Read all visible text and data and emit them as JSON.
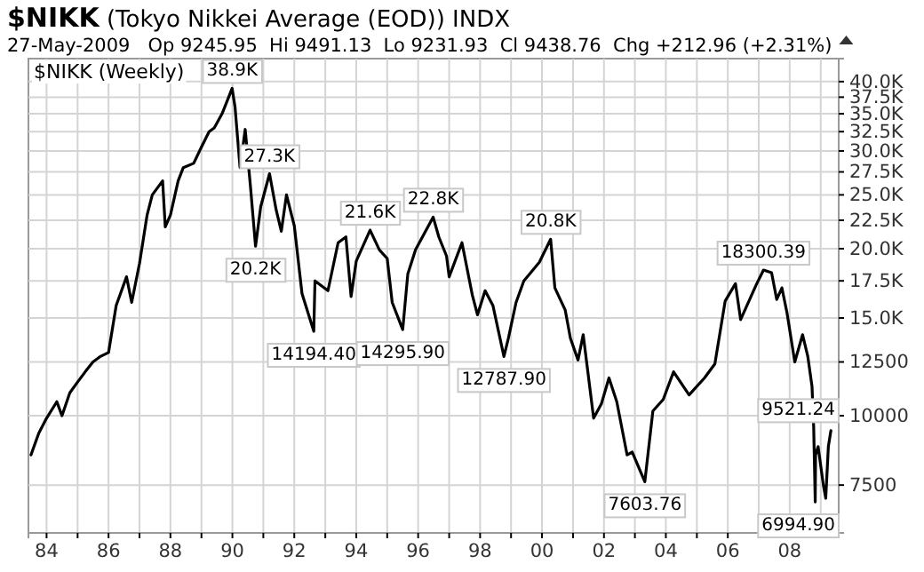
{
  "chart_data": {
    "type": "line",
    "title": "$NIKK (Tokyo Nikkei Average (EOD)) INDX",
    "subtitle": "27-May-2009   Op 9245.95  Hi 9491.13  Lo 9231.93  Cl 9438.76  Chg +212.96 (+2.31%)",
    "log": "y",
    "grid": true,
    "xlim": [
      "1983-06",
      "2009-08"
    ],
    "xticks": [
      {
        "value": "1984",
        "label": "84"
      },
      {
        "value": "1985",
        "label": null
      },
      {
        "value": "1986",
        "label": "86"
      },
      {
        "value": "1987",
        "label": null
      },
      {
        "value": "1988",
        "label": "88"
      },
      {
        "value": "1989",
        "label": null
      },
      {
        "value": "1990",
        "label": "90"
      },
      {
        "value": "1991",
        "label": null
      },
      {
        "value": "1992",
        "label": "92"
      },
      {
        "value": "1993",
        "label": null
      },
      {
        "value": "1994",
        "label": "94"
      },
      {
        "value": "1995",
        "label": null
      },
      {
        "value": "1996",
        "label": "96"
      },
      {
        "value": "1997",
        "label": null
      },
      {
        "value": "1998",
        "label": "98"
      },
      {
        "value": "1999",
        "label": null
      },
      {
        "value": "2000",
        "label": "00"
      },
      {
        "value": "2001",
        "label": null
      },
      {
        "value": "2002",
        "label": "02"
      },
      {
        "value": "2003",
        "label": null
      },
      {
        "value": "2004",
        "label": "04"
      },
      {
        "value": "2005",
        "label": null
      },
      {
        "value": "2006",
        "label": "06"
      },
      {
        "value": "2007",
        "label": null
      },
      {
        "value": "2008",
        "label": "08"
      },
      {
        "value": "2009",
        "label": null
      }
    ],
    "ylim": [
      6150,
      44000
    ],
    "yticks": [
      7500,
      10000,
      12500,
      {
        "value": 15000,
        "label": "15.0K"
      },
      {
        "value": 17500,
        "label": "17.5K"
      },
      {
        "value": 20000,
        "label": "20.0K"
      },
      {
        "value": 22500,
        "label": "22.5K"
      },
      {
        "value": 25000,
        "label": "25.0K"
      },
      {
        "value": 27500,
        "label": "27.5K"
      },
      {
        "value": 30000,
        "label": "30.0K"
      },
      {
        "value": 32500,
        "label": "32.5K"
      },
      {
        "value": 35000,
        "label": "35.0K"
      },
      {
        "value": 37500,
        "label": "37.5K"
      },
      {
        "value": 40000,
        "label": "40.0K"
      }
    ],
    "series": [
      {
        "color": "#000000",
        "x": [
          "1983-07",
          "1983-10",
          "1984-01",
          "1984-05",
          "1984-07",
          "1984-10",
          "1985-01",
          "1985-04",
          "1985-07",
          "1985-10",
          "1986-01",
          "1986-04",
          "1986-08",
          "1986-10",
          "1987-01",
          "1987-04",
          "1987-06",
          "1987-10",
          "1987-11",
          "1988-01",
          "1988-04",
          "1988-06",
          "1988-10",
          "1989-01",
          "1989-04",
          "1989-06",
          "1989-09",
          "1989-12-29",
          "1990-02",
          "1990-04",
          "1990-06",
          "1990-08",
          "1990-10-01",
          "1990-12",
          "1991-03-15",
          "1991-06",
          "1991-08",
          "1991-10",
          "1992-01",
          "1992-04",
          "1992-08-18",
          "1992-09",
          "1993-02",
          "1993-06",
          "1993-09",
          "1993-11",
          "1994-01",
          "1994-06-13",
          "1994-10",
          "1995-01",
          "1995-03",
          "1995-07-03",
          "1995-09",
          "1995-12",
          "1996-06-26",
          "1996-09",
          "1996-12",
          "1997-01",
          "1997-06",
          "1997-10",
          "1997-12",
          "1998-03",
          "1998-06",
          "1998-10-09",
          "1998-12",
          "1999-03",
          "1999-06",
          "1999-12",
          "2000-04-12",
          "2000-06",
          "2000-10",
          "2000-12",
          "2001-03",
          "2001-05",
          "2001-09",
          "2001-12",
          "2002-03",
          "2002-06",
          "2002-10",
          "2002-12",
          "2003-04-28",
          "2003-08",
          "2003-12",
          "2004-04",
          "2004-10",
          "2005-04",
          "2005-08",
          "2005-12",
          "2006-04",
          "2006-06",
          "2006-12",
          "2007-02-26",
          "2007-06",
          "2007-08",
          "2007-10",
          "2007-12",
          "2008-03",
          "2008-06",
          "2008-08",
          "2008-09-20",
          "2008-10-10",
          "2008-10-28",
          "2008-11",
          "2008-12",
          "2009-02",
          "2009-03",
          "2009-04",
          "2009-05"
        ],
        "values": [
          8500,
          9300,
          9900,
          10600,
          10000,
          11000,
          11500,
          12000,
          12500,
          12800,
          13000,
          15800,
          17800,
          16000,
          18800,
          23000,
          25000,
          26500,
          21900,
          23000,
          26500,
          28000,
          28500,
          30500,
          32500,
          33000,
          35000,
          38900,
          36000,
          28000,
          32800,
          26000,
          20200,
          23800,
          27300,
          23500,
          21500,
          25000,
          22000,
          16600,
          14194.4,
          17500,
          16800,
          20500,
          21000,
          16400,
          19000,
          21600,
          19900,
          19200,
          16000,
          14295.9,
          18000,
          19900,
          22800,
          21000,
          19400,
          17800,
          20500,
          16500,
          15200,
          16800,
          15800,
          12787.9,
          13800,
          16000,
          17500,
          18900,
          20800,
          17000,
          15500,
          13800,
          12600,
          14000,
          9900,
          10500,
          11700,
          10600,
          8500,
          8600,
          7603.76,
          10200,
          10700,
          12000,
          10900,
          11700,
          12400,
          16100,
          17300,
          14900,
          17200,
          18300.39,
          18100,
          16200,
          17000,
          15300,
          12500,
          14000,
          12800,
          11300,
          9521.24,
          6994.9,
          8500,
          8800,
          7500,
          7100,
          8800,
          9400
        ]
      }
    ],
    "annotations": [
      "$NIKK (Weekly)",
      {
        "text": "38.9K",
        "x": "1989-12-29",
        "y": 38900
      },
      {
        "text": "27.3K",
        "x": "1991-03-15",
        "y": 27300
      },
      {
        "text": "20.2K",
        "x": "1990-10-01",
        "y": 20200
      },
      {
        "text": "14194.40",
        "x": "1992-08-18",
        "y": 14194.4
      },
      {
        "text": "21.6K",
        "x": "1994-06-13",
        "y": 21600
      },
      {
        "text": "14295.90",
        "x": "1995-07-03",
        "y": 14295.9
      },
      {
        "text": "22.8K",
        "x": "1996-06-26",
        "y": 22800
      },
      {
        "text": "12787.90",
        "x": "1998-10-09",
        "y": 12787.9
      },
      {
        "text": "20.8K",
        "x": "2000-04-12",
        "y": 20800
      },
      {
        "text": "7603.76",
        "x": "2003-04-28",
        "y": 7603.76
      },
      {
        "text": "18300.39",
        "x": "2007-02-26",
        "y": 18300.39
      },
      {
        "text": "9521.24",
        "x": "2008-09-20",
        "y": 9521.24
      },
      {
        "text": "6994.90",
        "x": "2008-10-28",
        "y": 6994.9
      }
    ]
  }
}
